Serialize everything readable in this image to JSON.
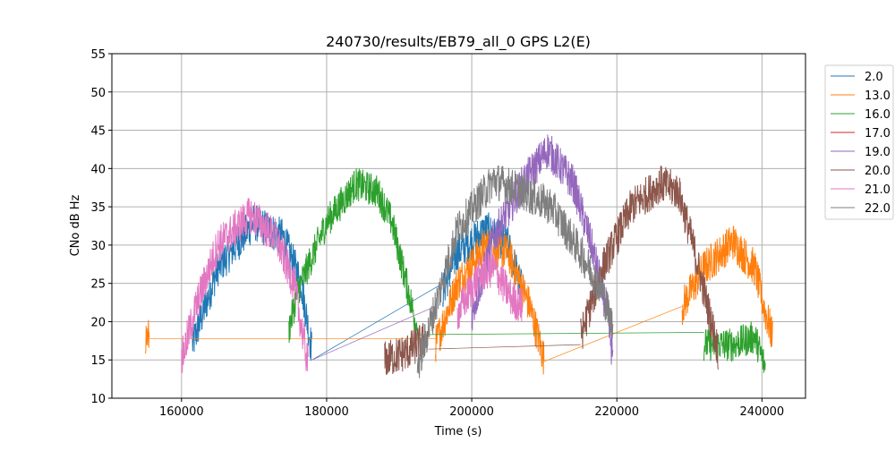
{
  "chart_data": {
    "type": "line",
    "title": "240730/results/EB79_all_0 GPS L2(E)",
    "xlabel": "Time (s)",
    "ylabel": "CNo dB Hz",
    "xlim": [
      150400,
      246000
    ],
    "ylim": [
      10,
      55
    ],
    "xticks": [
      160000,
      180000,
      200000,
      220000,
      240000
    ],
    "yticks": [
      10,
      15,
      20,
      25,
      30,
      35,
      40,
      45,
      50,
      55
    ],
    "grid": true,
    "legend_position": "outside-right-top",
    "series": [
      {
        "name": "2.0",
        "color": "#1f77b4",
        "noise": 2.5,
        "segments": [
          {
            "points": [
              [
                161500,
                17
              ],
              [
                165000,
                27
              ],
              [
                170000,
                33
              ],
              [
                174000,
                31
              ],
              [
                176500,
                25
              ],
              [
                178000,
                16
              ]
            ]
          },
          {
            "thin": true,
            "points": [
              [
                178000,
                15
              ],
              [
                196000,
                25
              ]
            ]
          },
          {
            "points": [
              [
                196000,
                24
              ],
              [
                198000,
                29
              ],
              [
                202000,
                32
              ],
              [
                205000,
                30
              ],
              [
                207000,
                24
              ]
            ]
          }
        ]
      },
      {
        "name": "13.0",
        "color": "#ff7f0e",
        "noise": 2.5,
        "segments": [
          {
            "points": [
              [
                155000,
                18
              ],
              [
                155600,
                18
              ]
            ]
          },
          {
            "thin": true,
            "points": [
              [
                155600,
                17.8
              ],
              [
                195000,
                17.8
              ]
            ]
          },
          {
            "points": [
              [
                195000,
                17
              ],
              [
                198000,
                25
              ],
              [
                202000,
                30
              ],
              [
                205000,
                29
              ],
              [
                208000,
                22
              ],
              [
                210000,
                15
              ]
            ]
          },
          {
            "thin": true,
            "points": [
              [
                210000,
                14.8
              ],
              [
                229000,
                22
              ]
            ]
          },
          {
            "points": [
              [
                229000,
                22
              ],
              [
                232000,
                27
              ],
              [
                236000,
                30.5
              ],
              [
                239000,
                27
              ],
              [
                240500,
                21
              ],
              [
                241500,
                18
              ]
            ]
          }
        ]
      },
      {
        "name": "16.0",
        "color": "#2ca02c",
        "noise": 2.2,
        "segments": [
          {
            "points": [
              [
                174800,
                19
              ],
              [
                176000,
                24
              ],
              [
                180000,
                33
              ],
              [
                184000,
                38
              ],
              [
                187000,
                37
              ],
              [
                189000,
                33
              ],
              [
                191000,
                25
              ],
              [
                192500,
                19
              ]
            ]
          },
          {
            "thin": true,
            "points": [
              [
                192500,
                18.3
              ],
              [
                232000,
                18.6
              ]
            ]
          },
          {
            "points": [
              [
                232000,
                17
              ],
              [
                236000,
                17
              ],
              [
                239000,
                18
              ],
              [
                240500,
                14
              ]
            ]
          }
        ]
      },
      {
        "name": "17.0",
        "color": "#d62728",
        "noise": 0,
        "segments": []
      },
      {
        "name": "19.0",
        "color": "#9467bd",
        "noise": 2.5,
        "segments": [
          {
            "thin": true,
            "points": [
              [
                178000,
                15
              ],
              [
                195000,
                22
              ]
            ]
          },
          {
            "points": [
              [
                200000,
                21
              ],
              [
                203000,
                31
              ],
              [
                207000,
                38
              ],
              [
                210500,
                42.5
              ],
              [
                214000,
                38
              ],
              [
                216500,
                30
              ],
              [
                218500,
                22
              ],
              [
                219500,
                15
              ]
            ]
          }
        ]
      },
      {
        "name": "20.0",
        "color": "#8c564b",
        "noise": 2.5,
        "segments": [
          {
            "points": [
              [
                188000,
                15
              ],
              [
                191000,
                16
              ],
              [
                194000,
                18
              ]
            ]
          },
          {
            "thin": true,
            "points": [
              [
                194000,
                16.4
              ],
              [
                215000,
                17
              ]
            ]
          },
          {
            "points": [
              [
                215000,
                18
              ],
              [
                218000,
                27
              ],
              [
                222000,
                35
              ],
              [
                226000,
                38
              ],
              [
                228500,
                37
              ],
              [
                230500,
                30
              ],
              [
                232500,
                22
              ],
              [
                234000,
                16
              ]
            ]
          }
        ]
      },
      {
        "name": "21.0",
        "color": "#e377c2",
        "noise": 2.5,
        "segments": [
          {
            "points": [
              [
                160000,
                15
              ],
              [
                162000,
                22
              ],
              [
                165000,
                30
              ],
              [
                169500,
                34
              ],
              [
                173000,
                31
              ],
              [
                175500,
                25
              ],
              [
                177500,
                14
              ]
            ]
          },
          {
            "points": [
              [
                198000,
                21
              ],
              [
                201000,
                26
              ],
              [
                203000,
                27
              ],
              [
                205500,
                23
              ],
              [
                207000,
                22
              ]
            ]
          }
        ]
      },
      {
        "name": "22.0",
        "color": "#7f7f7f",
        "noise": 2.5,
        "segments": [
          {
            "points": [
              [
                192500,
                14
              ],
              [
                195000,
                22
              ],
              [
                198000,
                32
              ],
              [
                203000,
                38.5
              ],
              [
                207000,
                37
              ],
              [
                211000,
                35
              ],
              [
                215000,
                29
              ],
              [
                218000,
                24
              ],
              [
                219500,
                19
              ]
            ]
          }
        ]
      }
    ]
  }
}
